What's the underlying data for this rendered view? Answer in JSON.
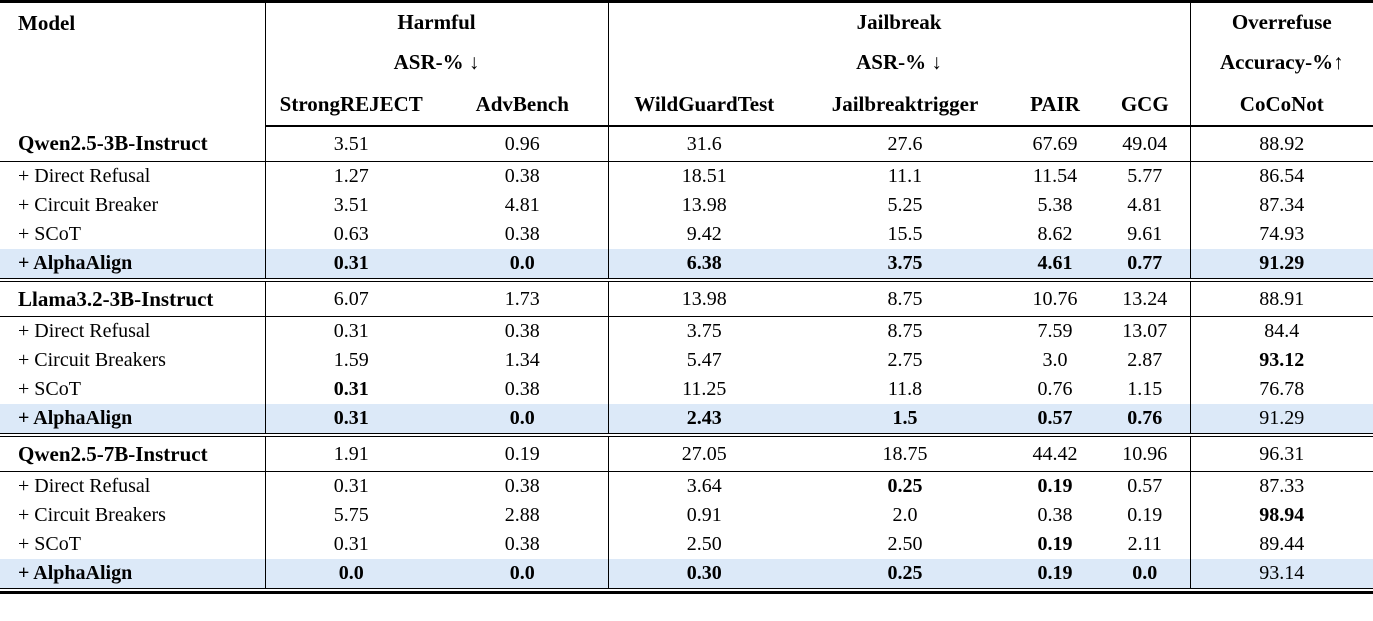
{
  "table": {
    "header": {
      "model_label": "Model",
      "groups": [
        {
          "label": "Harmful",
          "metric": "ASR-% ↓",
          "columns": [
            "StrongREJECT",
            "AdvBench"
          ]
        },
        {
          "label": "Jailbreak",
          "metric": "ASR-% ↓",
          "columns": [
            "WildGuardTest",
            "Jailbreaktrigger",
            "PAIR",
            "GCG"
          ]
        },
        {
          "label": "Overrefuse",
          "metric": "Accuracy-%↑",
          "columns": [
            "CoCoNot"
          ]
        }
      ]
    },
    "highlight_color": "#dce9f8",
    "blocks": [
      {
        "rows": [
          {
            "type": "base",
            "label": "Qwen2.5-3B-Instruct",
            "label_bold": true,
            "highlight": false,
            "values": [
              "3.51",
              "0.96",
              "31.6",
              "27.6",
              "67.69",
              "49.04",
              "88.92"
            ],
            "bold": []
          },
          {
            "type": "method",
            "label": "+ Direct Refusal",
            "label_bold": false,
            "highlight": false,
            "values": [
              "1.27",
              "0.38",
              "18.51",
              "11.1",
              "11.54",
              "5.77",
              "86.54"
            ],
            "bold": []
          },
          {
            "type": "method",
            "label": "+ Circuit Breaker",
            "label_bold": false,
            "highlight": false,
            "values": [
              "3.51",
              "4.81",
              "13.98",
              "5.25",
              "5.38",
              "4.81",
              "87.34"
            ],
            "bold": []
          },
          {
            "type": "method",
            "label": "+ SCoT",
            "label_bold": false,
            "highlight": false,
            "values": [
              "0.63",
              "0.38",
              "9.42",
              "15.5",
              "8.62",
              "9.61",
              "74.93"
            ],
            "bold": []
          },
          {
            "type": "method",
            "label": "+ AlphaAlign",
            "label_bold": true,
            "highlight": true,
            "values": [
              "0.31",
              "0.0",
              "6.38",
              "3.75",
              "4.61",
              "0.77",
              "91.29"
            ],
            "bold": [
              0,
              1,
              2,
              3,
              4,
              5,
              6
            ]
          }
        ]
      },
      {
        "rows": [
          {
            "type": "base",
            "label": "Llama3.2-3B-Instruct",
            "label_bold": true,
            "highlight": false,
            "values": [
              "6.07",
              "1.73",
              "13.98",
              "8.75",
              "10.76",
              "13.24",
              "88.91"
            ],
            "bold": []
          },
          {
            "type": "method",
            "label": "+ Direct Refusal",
            "label_bold": false,
            "highlight": false,
            "values": [
              "0.31",
              "0.38",
              "3.75",
              "8.75",
              "7.59",
              "13.07",
              "84.4"
            ],
            "bold": []
          },
          {
            "type": "method",
            "label": "+ Circuit Breakers",
            "label_bold": false,
            "highlight": false,
            "values": [
              "1.59",
              "1.34",
              "5.47",
              "2.75",
              "3.0",
              "2.87",
              "93.12"
            ],
            "bold": [
              6
            ]
          },
          {
            "type": "method",
            "label": "+ SCoT",
            "label_bold": false,
            "highlight": false,
            "values": [
              "0.31",
              "0.38",
              "11.25",
              "11.8",
              "0.76",
              "1.15",
              "76.78"
            ],
            "bold": [
              0
            ]
          },
          {
            "type": "method",
            "label": "+ AlphaAlign",
            "label_bold": true,
            "highlight": true,
            "values": [
              "0.31",
              "0.0",
              "2.43",
              "1.5",
              "0.57",
              "0.76",
              "91.29"
            ],
            "bold": [
              0,
              1,
              2,
              3,
              4,
              5
            ]
          }
        ]
      },
      {
        "rows": [
          {
            "type": "base",
            "label": "Qwen2.5-7B-Instruct",
            "label_bold": true,
            "highlight": false,
            "values": [
              "1.91",
              "0.19",
              "27.05",
              "18.75",
              "44.42",
              "10.96",
              "96.31"
            ],
            "bold": []
          },
          {
            "type": "method",
            "label": "+ Direct Refusal",
            "label_bold": false,
            "highlight": false,
            "values": [
              "0.31",
              "0.38",
              "3.64",
              "0.25",
              "0.19",
              "0.57",
              "87.33"
            ],
            "bold": [
              3,
              4
            ]
          },
          {
            "type": "method",
            "label": "+ Circuit Breakers",
            "label_bold": false,
            "highlight": false,
            "values": [
              "5.75",
              "2.88",
              "0.91",
              "2.0",
              "0.38",
              "0.19",
              "98.94"
            ],
            "bold": [
              6
            ]
          },
          {
            "type": "method",
            "label": "+ SCoT",
            "label_bold": false,
            "highlight": false,
            "values": [
              "0.31",
              "0.38",
              "2.50",
              "2.50",
              "0.19",
              "2.11",
              "89.44"
            ],
            "bold": [
              4
            ]
          },
          {
            "type": "method",
            "label": "+ AlphaAlign",
            "label_bold": true,
            "highlight": true,
            "values": [
              "0.0",
              "0.0",
              "0.30",
              "0.25",
              "0.19",
              "0.0",
              "93.14"
            ],
            "bold": [
              0,
              1,
              2,
              3,
              4,
              5
            ]
          }
        ]
      }
    ]
  }
}
